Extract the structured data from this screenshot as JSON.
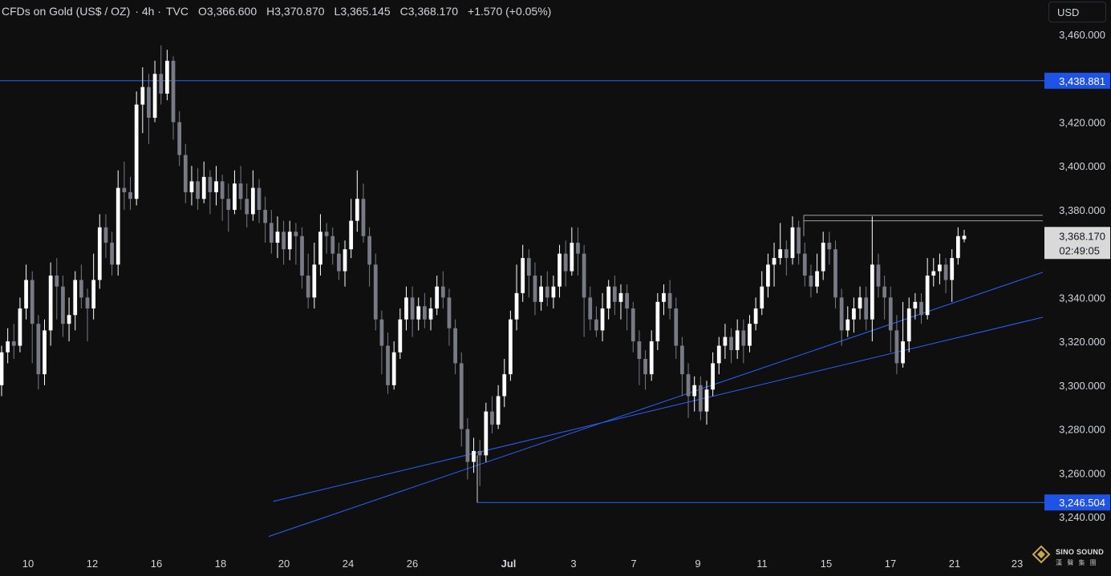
{
  "header": {
    "symbol": "CFDs on Gold (US$ / OZ)",
    "interval": "· 4h ·",
    "source": "TVC",
    "open": "O3,366.600",
    "high": "H3,370.870",
    "low": "L3,365.145",
    "close": "C3,368.170",
    "change": "+1.570 (+0.05%)"
  },
  "currency_button": "USD",
  "brand": {
    "name": "SINO SOUND",
    "sub": "漢 聲 集 團"
  },
  "colors": {
    "background": "#0f0f0f",
    "candle_up": "#ffffff",
    "candle_down": "#787b86",
    "trendline": "#2962ff",
    "marker_label": "#1e53e5",
    "current_price_label": "#d9d9d9",
    "resistance_line": "#9e9e9e"
  },
  "chart_data": {
    "type": "candlestick",
    "title": "CFDs on Gold (US$ / OZ) · 4h · TVC",
    "ylim": [
      3235,
      3465
    ],
    "y_ticks": [
      3460,
      3420,
      3400,
      3380,
      3340,
      3320,
      3300,
      3280,
      3260,
      3240
    ],
    "y_tick_labels": [
      "3,460.000",
      "3,420.000",
      "3,400.000",
      "3,380.000",
      "3,340.000",
      "3,320.000",
      "3,300.000",
      "3,280.000",
      "3,260.000",
      "3,240.000"
    ],
    "x_tick_labels": [
      "10",
      "12",
      "16",
      "18",
      "20",
      "24",
      "26",
      "Jul",
      "3",
      "7",
      "9",
      "11",
      "15",
      "17",
      "21",
      "23"
    ],
    "marked_prices": [
      {
        "label": "3,438.881",
        "value": 3438.881
      },
      {
        "label": "3,246.504",
        "value": 3246.504
      }
    ],
    "current_price": {
      "label": "3,368.170",
      "countdown": "02:49:05",
      "value": 3368.17
    },
    "resistance": [
      3377.5,
      3375.0
    ],
    "trendlines": [
      {
        "from": [
          0.0,
          3231.0
        ],
        "to": [
          1.0,
          3351.5
        ]
      },
      {
        "from": [
          0.262,
          3247.0
        ],
        "to": [
          1.0,
          3331.0
        ]
      }
    ],
    "candles": [
      [
        3300,
        3315,
        3318,
        3295
      ],
      [
        3315,
        3320,
        3326,
        3310
      ],
      [
        3320,
        3318,
        3328,
        3312
      ],
      [
        3318,
        3335,
        3340,
        3315
      ],
      [
        3335,
        3348,
        3355,
        3330
      ],
      [
        3348,
        3328,
        3352,
        3310
      ],
      [
        3328,
        3305,
        3332,
        3298
      ],
      [
        3305,
        3325,
        3330,
        3300
      ],
      [
        3325,
        3350,
        3356,
        3318
      ],
      [
        3350,
        3345,
        3358,
        3330
      ],
      [
        3345,
        3328,
        3350,
        3322
      ],
      [
        3328,
        3332,
        3340,
        3320
      ],
      [
        3332,
        3348,
        3352,
        3325
      ],
      [
        3348,
        3340,
        3355,
        3335
      ],
      [
        3340,
        3335,
        3344,
        3320
      ],
      [
        3335,
        3348,
        3360,
        3330
      ],
      [
        3348,
        3372,
        3378,
        3344
      ],
      [
        3372,
        3365,
        3378,
        3358
      ],
      [
        3365,
        3355,
        3370,
        3350
      ],
      [
        3355,
        3390,
        3398,
        3350
      ],
      [
        3390,
        3388,
        3402,
        3380
      ],
      [
        3388,
        3385,
        3395,
        3380
      ],
      [
        3385,
        3428,
        3434,
        3382
      ],
      [
        3428,
        3436,
        3445,
        3415
      ],
      [
        3436,
        3422,
        3442,
        3410
      ],
      [
        3422,
        3442,
        3448,
        3420
      ],
      [
        3442,
        3433,
        3455,
        3428
      ],
      [
        3433,
        3448,
        3453,
        3430
      ],
      [
        3448,
        3420,
        3450,
        3412
      ],
      [
        3420,
        3405,
        3425,
        3400
      ],
      [
        3405,
        3388,
        3410,
        3383
      ],
      [
        3388,
        3393,
        3400,
        3382
      ],
      [
        3393,
        3385,
        3399,
        3380
      ],
      [
        3385,
        3395,
        3402,
        3383
      ],
      [
        3395,
        3388,
        3398,
        3378
      ],
      [
        3388,
        3393,
        3400,
        3382
      ],
      [
        3393,
        3385,
        3396,
        3375
      ],
      [
        3385,
        3380,
        3392,
        3370
      ],
      [
        3380,
        3392,
        3398,
        3378
      ],
      [
        3392,
        3385,
        3400,
        3380
      ],
      [
        3385,
        3378,
        3392,
        3372
      ],
      [
        3378,
        3390,
        3398,
        3375
      ],
      [
        3390,
        3380,
        3394,
        3374
      ],
      [
        3380,
        3374,
        3386,
        3365
      ],
      [
        3374,
        3365,
        3380,
        3360
      ],
      [
        3365,
        3370,
        3377,
        3358
      ],
      [
        3370,
        3362,
        3375,
        3355
      ],
      [
        3362,
        3370,
        3375,
        3357
      ],
      [
        3370,
        3368,
        3374,
        3355
      ],
      [
        3368,
        3350,
        3372,
        3344
      ],
      [
        3350,
        3340,
        3360,
        3335
      ],
      [
        3340,
        3355,
        3365,
        3335
      ],
      [
        3355,
        3370,
        3378,
        3350
      ],
      [
        3370,
        3368,
        3374,
        3360
      ],
      [
        3368,
        3360,
        3372,
        3355
      ],
      [
        3360,
        3352,
        3365,
        3348
      ],
      [
        3352,
        3362,
        3366,
        3345
      ],
      [
        3362,
        3375,
        3385,
        3358
      ],
      [
        3375,
        3385,
        3398,
        3370
      ],
      [
        3385,
        3368,
        3392,
        3365
      ],
      [
        3368,
        3355,
        3372,
        3345
      ],
      [
        3355,
        3330,
        3360,
        3325
      ],
      [
        3330,
        3318,
        3334,
        3305
      ],
      [
        3318,
        3300,
        3324,
        3296
      ],
      [
        3300,
        3315,
        3320,
        3298
      ],
      [
        3315,
        3330,
        3335,
        3312
      ],
      [
        3330,
        3340,
        3345,
        3325
      ],
      [
        3340,
        3330,
        3345,
        3322
      ],
      [
        3330,
        3336,
        3340,
        3325
      ],
      [
        3336,
        3330,
        3342,
        3326
      ],
      [
        3330,
        3335,
        3340,
        3325
      ],
      [
        3335,
        3345,
        3350,
        3332
      ],
      [
        3345,
        3340,
        3352,
        3335
      ],
      [
        3340,
        3326,
        3344,
        3318
      ],
      [
        3326,
        3310,
        3330,
        3305
      ],
      [
        3310,
        3280,
        3315,
        3272
      ],
      [
        3280,
        3265,
        3285,
        3257
      ],
      [
        3265,
        3270,
        3276,
        3260
      ],
      [
        3270,
        3268,
        3275,
        3254
      ],
      [
        3268,
        3288,
        3292,
        3265
      ],
      [
        3288,
        3282,
        3295,
        3278
      ],
      [
        3282,
        3295,
        3300,
        3280
      ],
      [
        3295,
        3305,
        3312,
        3290
      ],
      [
        3305,
        3330,
        3334,
        3302
      ],
      [
        3330,
        3342,
        3355,
        3325
      ],
      [
        3342,
        3358,
        3364,
        3338
      ],
      [
        3358,
        3350,
        3362,
        3340
      ],
      [
        3350,
        3338,
        3356,
        3332
      ],
      [
        3338,
        3345,
        3350,
        3334
      ],
      [
        3345,
        3340,
        3352,
        3336
      ],
      [
        3340,
        3345,
        3350,
        3335
      ],
      [
        3345,
        3360,
        3364,
        3340
      ],
      [
        3360,
        3352,
        3366,
        3345
      ],
      [
        3352,
        3365,
        3372,
        3350
      ],
      [
        3365,
        3360,
        3372,
        3350
      ],
      [
        3360,
        3340,
        3364,
        3322
      ],
      [
        3340,
        3330,
        3345,
        3325
      ],
      [
        3330,
        3325,
        3336,
        3322
      ],
      [
        3325,
        3335,
        3342,
        3320
      ],
      [
        3335,
        3345,
        3348,
        3330
      ],
      [
        3345,
        3338,
        3350,
        3332
      ],
      [
        3338,
        3342,
        3346,
        3330
      ],
      [
        3342,
        3335,
        3346,
        3325
      ],
      [
        3335,
        3320,
        3338,
        3315
      ],
      [
        3320,
        3312,
        3325,
        3300
      ],
      [
        3312,
        3305,
        3316,
        3298
      ],
      [
        3305,
        3320,
        3325,
        3302
      ],
      [
        3320,
        3338,
        3342,
        3316
      ],
      [
        3338,
        3342,
        3346,
        3332
      ],
      [
        3342,
        3335,
        3348,
        3330
      ],
      [
        3335,
        3318,
        3340,
        3312
      ],
      [
        3318,
        3305,
        3322,
        3295
      ],
      [
        3305,
        3295,
        3310,
        3285
      ],
      [
        3295,
        3300,
        3304,
        3288
      ],
      [
        3300,
        3288,
        3304,
        3284
      ],
      [
        3288,
        3298,
        3302,
        3282
      ],
      [
        3298,
        3310,
        3315,
        3295
      ],
      [
        3310,
        3318,
        3322,
        3305
      ],
      [
        3318,
        3322,
        3328,
        3312
      ],
      [
        3322,
        3316,
        3326,
        3310
      ],
      [
        3316,
        3325,
        3330,
        3312
      ],
      [
        3325,
        3318,
        3330,
        3310
      ],
      [
        3318,
        3328,
        3332,
        3315
      ],
      [
        3328,
        3335,
        3340,
        3325
      ],
      [
        3335,
        3345,
        3352,
        3332
      ],
      [
        3345,
        3355,
        3360,
        3340
      ],
      [
        3355,
        3358,
        3365,
        3345
      ],
      [
        3358,
        3362,
        3374,
        3355
      ],
      [
        3362,
        3358,
        3366,
        3350
      ],
      [
        3358,
        3372,
        3377,
        3355
      ],
      [
        3372,
        3360,
        3375,
        3355
      ],
      [
        3360,
        3350,
        3365,
        3345
      ],
      [
        3350,
        3345,
        3355,
        3340
      ],
      [
        3345,
        3352,
        3360,
        3342
      ],
      [
        3352,
        3365,
        3370,
        3348
      ],
      [
        3365,
        3362,
        3370,
        3355
      ],
      [
        3362,
        3340,
        3366,
        3335
      ],
      [
        3340,
        3325,
        3344,
        3318
      ],
      [
        3325,
        3330,
        3336,
        3322
      ],
      [
        3330,
        3335,
        3340,
        3324
      ],
      [
        3335,
        3340,
        3345,
        3330
      ],
      [
        3340,
        3330,
        3345,
        3325
      ],
      [
        3330,
        3355,
        3377,
        3320
      ],
      [
        3355,
        3345,
        3360,
        3340
      ],
      [
        3345,
        3340,
        3350,
        3330
      ],
      [
        3340,
        3325,
        3345,
        3315
      ],
      [
        3325,
        3310,
        3332,
        3305
      ],
      [
        3310,
        3320,
        3338,
        3308
      ],
      [
        3320,
        3335,
        3340,
        3315
      ],
      [
        3335,
        3338,
        3342,
        3330
      ],
      [
        3338,
        3332,
        3342,
        3328
      ],
      [
        3332,
        3350,
        3358,
        3330
      ],
      [
        3350,
        3352,
        3358,
        3345
      ],
      [
        3352,
        3355,
        3360,
        3346
      ],
      [
        3355,
        3348,
        3358,
        3342
      ],
      [
        3348,
        3358,
        3362,
        3338
      ],
      [
        3358,
        3368,
        3372,
        3355
      ],
      [
        3366.6,
        3368.17,
        3370.87,
        3365.145
      ]
    ]
  }
}
